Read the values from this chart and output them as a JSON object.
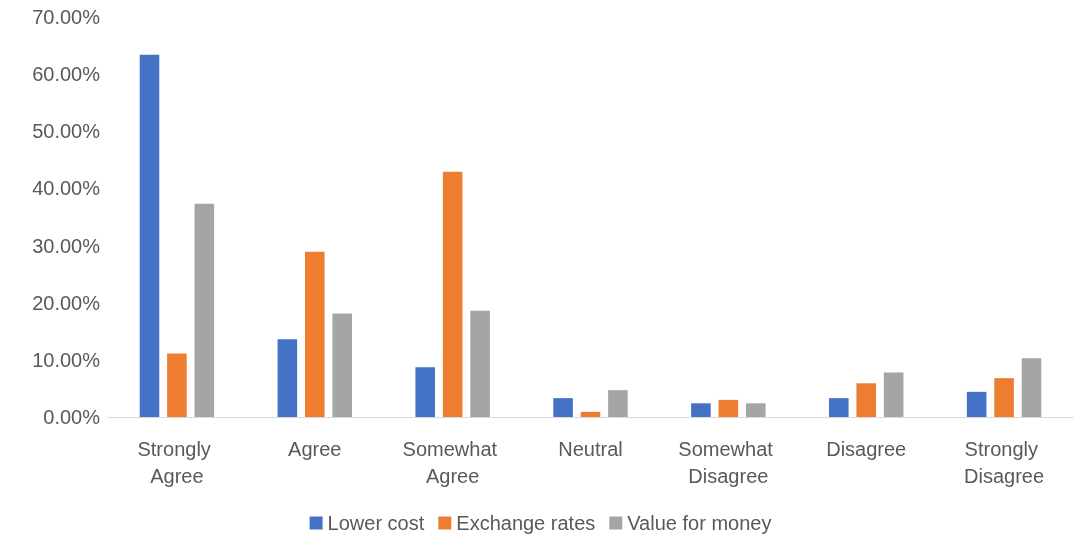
{
  "chart_data": {
    "type": "bar",
    "categories": [
      "Strongly Agree",
      "Agree",
      "Somewhat Agree",
      "Neutral",
      "Somewhat Disagree",
      "Disagree",
      "Strongly Disagree"
    ],
    "series": [
      {
        "name": "Lower cost",
        "color": "#4472c4",
        "values": [
          63.4,
          13.6,
          8.7,
          3.3,
          2.4,
          3.3,
          4.4
        ]
      },
      {
        "name": "Exchange rates",
        "color": "#ed7d31",
        "values": [
          11.1,
          28.9,
          42.9,
          0.9,
          3.0,
          5.9,
          6.8
        ]
      },
      {
        "name": "Value for money",
        "color": "#a5a5a5",
        "values": [
          37.3,
          18.1,
          18.6,
          4.7,
          2.4,
          7.8,
          10.3
        ]
      }
    ],
    "ylim": [
      0,
      70
    ],
    "yticks": [
      {
        "value": 0,
        "label": "0.00%"
      },
      {
        "value": 10,
        "label": "10.00%"
      },
      {
        "value": 20,
        "label": "20.00%"
      },
      {
        "value": 30,
        "label": "30.00%"
      },
      {
        "value": 40,
        "label": "40.00%"
      },
      {
        "value": 50,
        "label": "50.00%"
      },
      {
        "value": 60,
        "label": "60.00%"
      },
      {
        "value": 70,
        "label": "70.00%"
      }
    ],
    "grid": false,
    "legend": "bottom"
  }
}
